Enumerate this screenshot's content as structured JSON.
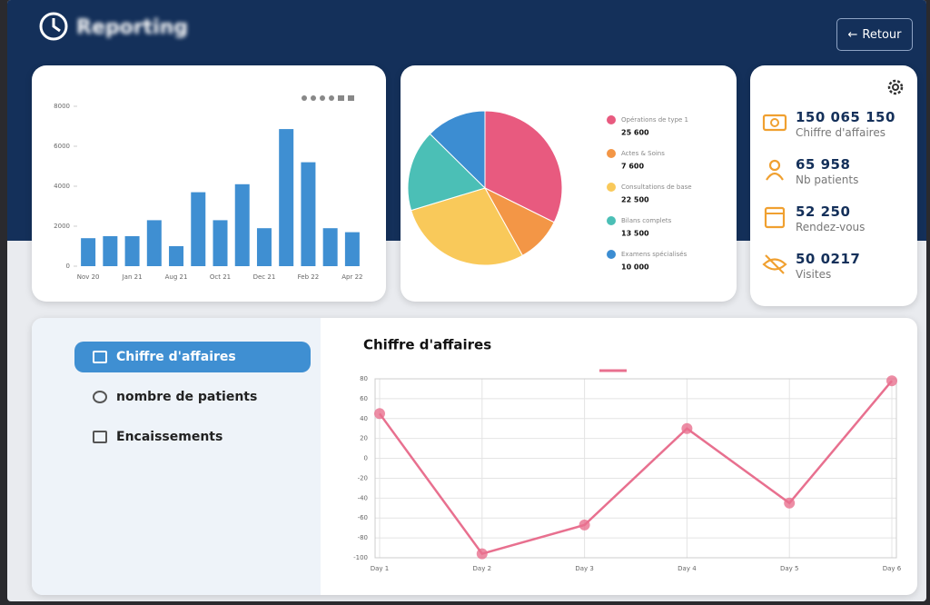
{
  "header": {
    "title": "Reporting",
    "back_button": "Retour"
  },
  "bar_chart": {
    "type": "bar",
    "categories": [
      "Nov 20",
      null,
      "Jan 21",
      null,
      "Aug 21",
      null,
      "Oct 21",
      null,
      "Dec 21",
      null,
      "Feb 22",
      null,
      "Apr 22"
    ],
    "values": [
      1400,
      1500,
      1500,
      2300,
      1000,
      3700,
      2300,
      4100,
      1900,
      6860,
      5200,
      1900,
      1700
    ],
    "color": "#3f8fd2",
    "ylim": [
      0,
      8000
    ],
    "yticks": [
      0,
      2000,
      4000,
      6000,
      8000
    ],
    "grid": false
  },
  "pie_chart": {
    "type": "pie",
    "categories": [
      "Opérations de type 1",
      "Actes & Soins",
      "Consultations de base",
      "Bilans complets",
      "Examens spécialisés"
    ],
    "values": [
      25600,
      7600,
      22500,
      13500,
      10000
    ],
    "value_labels": [
      "25 600",
      "7 600",
      "22 500",
      "13 500",
      "10 000"
    ],
    "colors": [
      "#e85a7f",
      "#f39646",
      "#f9c95a",
      "#4bbfb6",
      "#3c8dd2"
    ]
  },
  "kpis": [
    {
      "value": "150 065 150",
      "label": "Chiffre d'affaires"
    },
    {
      "value": "65 958",
      "label": "Nb patients"
    },
    {
      "value": "52 250",
      "label": "Rendez-vous"
    },
    {
      "value": "50 0217",
      "label": "Visites"
    }
  ],
  "menu": {
    "items": [
      "Chiffre d'affaires",
      "nombre de patients",
      "Encaissements"
    ],
    "active": 0
  },
  "line_chart": {
    "type": "line",
    "title": "Chiffre d'affaires",
    "categories": [
      "Day 1",
      "Day 2",
      "Day 3",
      "Day 4",
      "Day 5",
      "Day 6"
    ],
    "series": [
      {
        "color": "#e8708f",
        "values": [
          45,
          -96,
          -67,
          30,
          -45,
          78
        ]
      }
    ],
    "ylim": [
      -100,
      80
    ],
    "yticks": [
      -100,
      -80,
      -60,
      -40,
      -20,
      0,
      20,
      40,
      60,
      80
    ],
    "grid": true
  }
}
